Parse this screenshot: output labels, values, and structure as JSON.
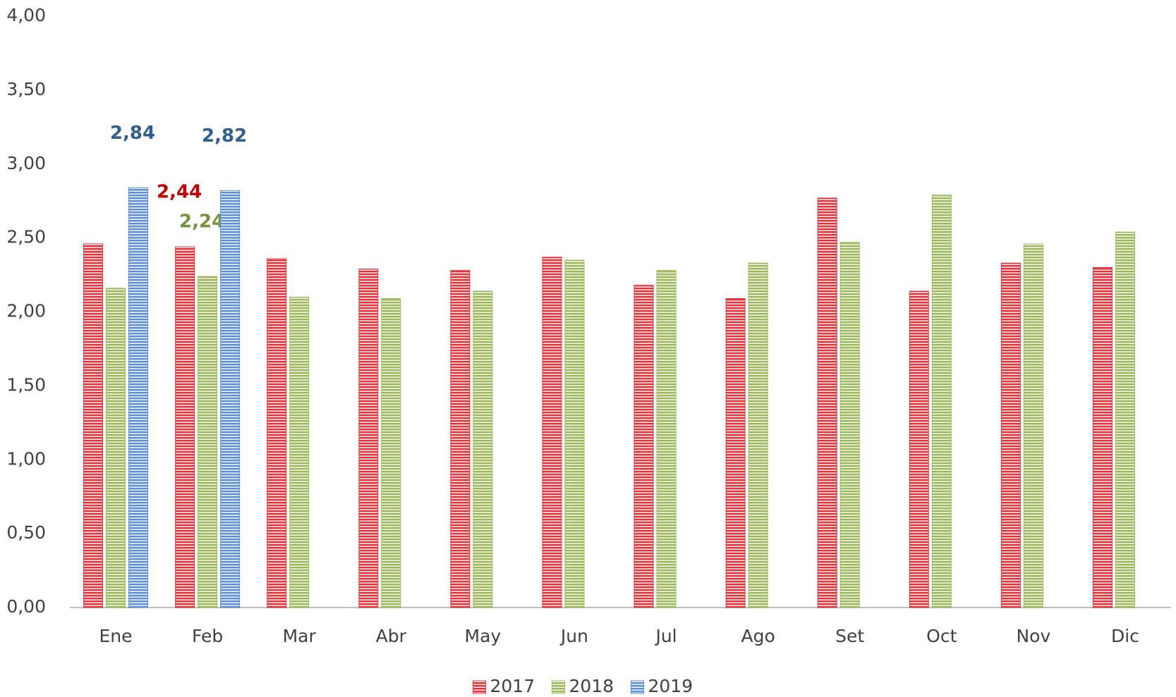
{
  "chart_data": {
    "type": "bar",
    "categories": [
      "Ene",
      "Feb",
      "Mar",
      "Abr",
      "May",
      "Jun",
      "Jul",
      "Ago",
      "Set",
      "Oct",
      "Nov",
      "Dic"
    ],
    "series": [
      {
        "name": "2017",
        "color": "#e8323a",
        "label_color": "#c00000",
        "values": [
          2.46,
          2.44,
          2.36,
          2.29,
          2.28,
          2.37,
          2.18,
          2.09,
          2.77,
          2.14,
          2.33,
          2.3
        ],
        "value_labels": [
          null,
          "2,44",
          null,
          null,
          null,
          null,
          null,
          null,
          null,
          null,
          null,
          null
        ]
      },
      {
        "name": "2018",
        "color": "#9bbb59",
        "label_color": "#76923c",
        "values": [
          2.16,
          2.24,
          2.1,
          2.09,
          2.14,
          2.35,
          2.28,
          2.33,
          2.47,
          2.79,
          2.46,
          2.54
        ],
        "value_labels": [
          null,
          "2,24",
          null,
          null,
          null,
          null,
          null,
          null,
          null,
          null,
          null,
          null
        ]
      },
      {
        "name": "2019",
        "color": "#5b8fd6",
        "label_color": "#2e5f8f",
        "values": [
          2.84,
          2.82,
          null,
          null,
          null,
          null,
          null,
          null,
          null,
          null,
          null,
          null
        ],
        "value_labels": [
          "2,84",
          "2,82",
          null,
          null,
          null,
          null,
          null,
          null,
          null,
          null,
          null,
          null
        ]
      }
    ],
    "ylim": [
      0,
      4
    ],
    "yticks": [
      {
        "value": 0,
        "label": "0,00"
      },
      {
        "value": 0.5,
        "label": "0,50"
      },
      {
        "value": 1,
        "label": "1,00"
      },
      {
        "value": 1.5,
        "label": "1,50"
      },
      {
        "value": 2,
        "label": "2,00"
      },
      {
        "value": 2.5,
        "label": "2,50"
      },
      {
        "value": 3,
        "label": "3,00"
      },
      {
        "value": 3.5,
        "label": "3,50"
      },
      {
        "value": 4,
        "label": "4,00"
      }
    ],
    "grid": false,
    "legend": "bottom"
  }
}
